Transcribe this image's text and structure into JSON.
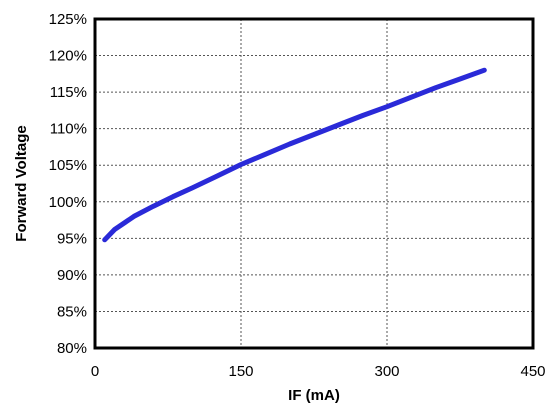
{
  "chart_data": {
    "type": "line",
    "title": "",
    "xlabel": "IF (mA)",
    "ylabel": "Forward Voltage",
    "xlim": [
      0,
      450
    ],
    "ylim": [
      80,
      125
    ],
    "x_ticks": [
      0,
      150,
      300,
      450
    ],
    "x_tick_labels": [
      "0",
      "150",
      "300",
      "450"
    ],
    "y_ticks": [
      80,
      85,
      90,
      95,
      100,
      105,
      110,
      115,
      120,
      125
    ],
    "y_tick_labels": [
      "80%",
      "85%",
      "90%",
      "95%",
      "100%",
      "105%",
      "110%",
      "115%",
      "120%",
      "125%"
    ],
    "grid": true,
    "series": [
      {
        "color": "#2a2ad8",
        "x": [
          10,
          20,
          40,
          60,
          80,
          100,
          125,
          150,
          175,
          200,
          225,
          250,
          275,
          300,
          325,
          350,
          375,
          400
        ],
        "y": [
          94.8,
          96.2,
          98.0,
          99.4,
          100.7,
          101.9,
          103.5,
          105.1,
          106.5,
          107.9,
          109.2,
          110.5,
          111.8,
          113.0,
          114.3,
          115.6,
          116.8,
          118.0
        ]
      }
    ]
  }
}
